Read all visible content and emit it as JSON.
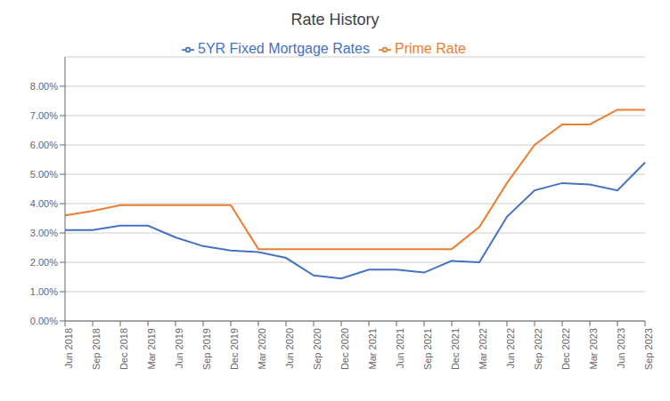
{
  "chart_data": {
    "type": "line",
    "title": "Rate History",
    "categories": [
      "Jun 2018",
      "Sep 2018",
      "Dec 2018",
      "Mar 2019",
      "Jun 2019",
      "Sep 2019",
      "Dec 2019",
      "Mar 2020",
      "Jun 2020",
      "Sep 2020",
      "Dec 2020",
      "Mar 2021",
      "Jun 2021",
      "Sep 2021",
      "Dec 2021",
      "Mar 2022",
      "Jun 2022",
      "Sep 2022",
      "Dec 2022",
      "Mar 2023",
      "Jun 2023",
      "Sep 2023"
    ],
    "series": [
      {
        "name": "5YR Fixed Mortgage Rates",
        "color": "#4472C4",
        "values": [
          0.031,
          0.031,
          0.0325,
          0.0325,
          0.0285,
          0.0255,
          0.024,
          0.0235,
          0.0215,
          0.0155,
          0.0145,
          0.0175,
          0.0175,
          0.0165,
          0.0205,
          0.02,
          0.0355,
          0.0445,
          0.047,
          0.0465,
          0.0445,
          0.054
        ]
      },
      {
        "name": "Prime Rate",
        "color": "#ED7D31",
        "values": [
          0.036,
          0.0375,
          0.0395,
          0.0395,
          0.0395,
          0.0395,
          0.0395,
          0.0245,
          0.0245,
          0.0245,
          0.0245,
          0.0245,
          0.0245,
          0.0245,
          0.0245,
          0.032,
          0.047,
          0.06,
          0.067,
          0.067,
          0.072,
          0.072
        ]
      }
    ],
    "ylim": [
      0.0,
      0.09
    ],
    "yticks": [
      {
        "value": 0.0,
        "label": "0.00%"
      },
      {
        "value": 0.01,
        "label": "1.00%"
      },
      {
        "value": 0.02,
        "label": "2.00%"
      },
      {
        "value": 0.03,
        "label": "3.00%"
      },
      {
        "value": 0.04,
        "label": "4.00%"
      },
      {
        "value": 0.05,
        "label": "5.00%"
      },
      {
        "value": 0.06,
        "label": "6.00%"
      },
      {
        "value": 0.07,
        "label": "7.00%"
      },
      {
        "value": 0.08,
        "label": "8.00%"
      }
    ],
    "grid": true,
    "legend": "top"
  }
}
